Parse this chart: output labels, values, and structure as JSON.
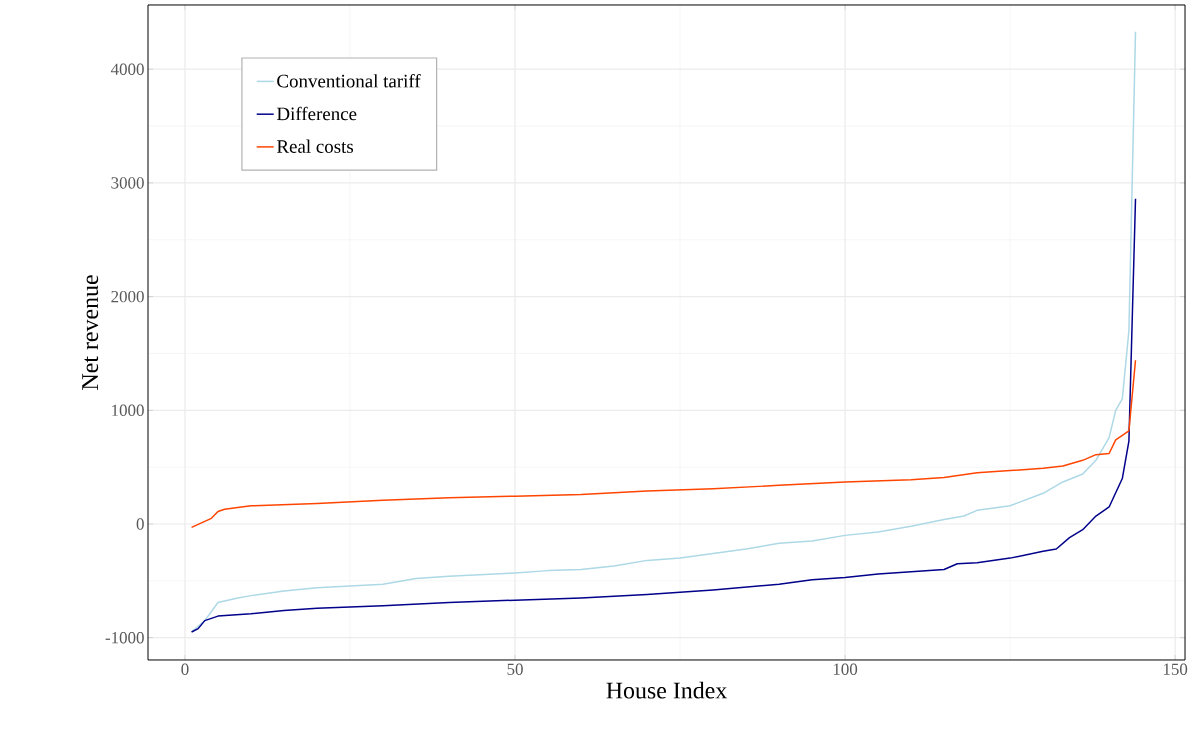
{
  "chart_data": {
    "type": "line",
    "xlabel": "House Index",
    "ylabel": "Net revenue",
    "xlim": [
      -5.6,
      151.5
    ],
    "ylim": [
      -1196,
      4565
    ],
    "xticks": [
      0,
      50,
      100,
      150
    ],
    "yticks": [
      -1000,
      0,
      1000,
      2000,
      3000,
      4000
    ],
    "grid": true,
    "legend": "top left",
    "line_style": "solid",
    "marker": "none",
    "series": [
      {
        "name": "Conventional tariff",
        "color": "#add8e6",
        "x": [
          1,
          3,
          5,
          8,
          10,
          15,
          20,
          30,
          35,
          40,
          50,
          55,
          60,
          65,
          70,
          75,
          80,
          85,
          90,
          95,
          100,
          105,
          110,
          115,
          118,
          120,
          125,
          130,
          133,
          136,
          138,
          140,
          141,
          142,
          143,
          144
        ],
        "values": [
          -950,
          -850,
          -690,
          -650,
          -630,
          -590,
          -560,
          -530,
          -480,
          -460,
          -430,
          -410,
          -400,
          -370,
          -320,
          -300,
          -260,
          -220,
          -170,
          -150,
          -100,
          -70,
          -20,
          40,
          70,
          120,
          160,
          270,
          370,
          440,
          560,
          760,
          1000,
          1100,
          1700,
          4330
        ]
      },
      {
        "name": "Difference",
        "color": "#00008b",
        "x": [
          1,
          2,
          3,
          5,
          10,
          15,
          20,
          30,
          40,
          50,
          60,
          70,
          75,
          80,
          90,
          95,
          100,
          105,
          110,
          115,
          117,
          120,
          125,
          130,
          132,
          134,
          136,
          138,
          140,
          142,
          143,
          144
        ],
        "values": [
          -950,
          -920,
          -850,
          -810,
          -790,
          -760,
          -740,
          -720,
          -690,
          -670,
          -650,
          -620,
          -600,
          -580,
          -530,
          -490,
          -470,
          -440,
          -420,
          -400,
          -350,
          -340,
          -300,
          -240,
          -220,
          -120,
          -50,
          70,
          150,
          400,
          730,
          2860
        ]
      },
      {
        "name": "Real costs",
        "color": "#ff4500",
        "x": [
          1,
          4,
          5,
          6,
          10,
          20,
          30,
          40,
          50,
          60,
          70,
          80,
          90,
          100,
          110,
          115,
          120,
          125,
          130,
          133,
          136,
          138,
          140,
          141,
          143,
          144
        ],
        "values": [
          -30,
          50,
          110,
          130,
          160,
          180,
          210,
          230,
          245,
          260,
          290,
          310,
          340,
          370,
          390,
          410,
          450,
          470,
          490,
          510,
          560,
          610,
          620,
          740,
          820,
          1440
        ]
      }
    ]
  }
}
